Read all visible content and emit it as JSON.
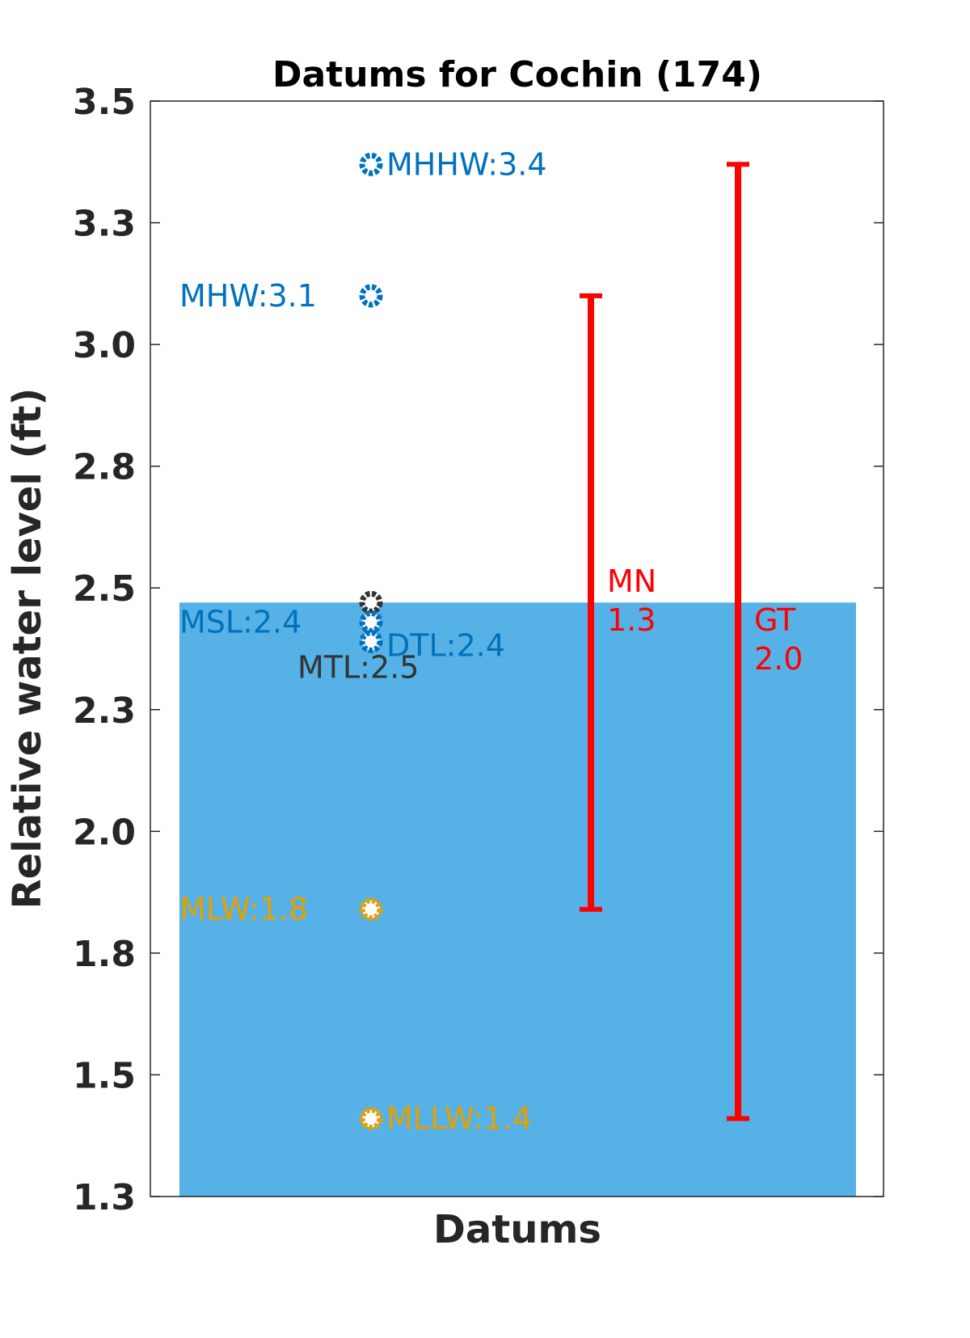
{
  "chart_data": {
    "type": "scatter",
    "title": "Datums for Cochin (174)",
    "xlabel": "Datums",
    "ylabel": "Relative water level (ft)",
    "ylim": [
      1.25,
      3.5
    ],
    "yticks": [
      1.25,
      1.5,
      1.75,
      2.0,
      2.25,
      2.5,
      2.75,
      3.0,
      3.25,
      3.5
    ],
    "ytick_labels": [
      "1.3",
      "1.5",
      "1.8",
      "2.0",
      "2.3",
      "2.5",
      "2.8",
      "3.0",
      "3.3",
      "3.5"
    ],
    "bar": {
      "value": 2.47,
      "color": "#56B1E6"
    },
    "points": [
      {
        "name": "MHHW",
        "value": 3.37,
        "label": "MHHW:3.4",
        "color": "#0072BD",
        "label_side": "right"
      },
      {
        "name": "MHW",
        "value": 3.1,
        "label": "MHW:3.1",
        "color": "#0072BD",
        "label_side": "left"
      },
      {
        "name": "MTL",
        "value": 2.47,
        "label": "MTL:2.5",
        "color": "#333333",
        "label_side": "below"
      },
      {
        "name": "MSL",
        "value": 2.43,
        "label": "MSL:2.4",
        "color": "#0072BD",
        "label_side": "left"
      },
      {
        "name": "DTL",
        "value": 2.39,
        "label": "DTL:2.4",
        "color": "#0072BD",
        "label_side": "right"
      },
      {
        "name": "MLW",
        "value": 1.84,
        "label": "MLW:1.8",
        "color": "#E6A000",
        "label_side": "left"
      },
      {
        "name": "MLLW",
        "value": 1.41,
        "label": "MLLW:1.4",
        "color": "#E6A000",
        "label_side": "right"
      }
    ],
    "ranges": [
      {
        "name": "MN",
        "label_lines": [
          "MN",
          "1.3"
        ],
        "low": 1.84,
        "high": 3.1,
        "color": "#FF0000"
      },
      {
        "name": "GT",
        "label_lines": [
          "GT",
          "2.0"
        ],
        "low": 1.41,
        "high": 3.37,
        "color": "#FF0000"
      }
    ]
  }
}
